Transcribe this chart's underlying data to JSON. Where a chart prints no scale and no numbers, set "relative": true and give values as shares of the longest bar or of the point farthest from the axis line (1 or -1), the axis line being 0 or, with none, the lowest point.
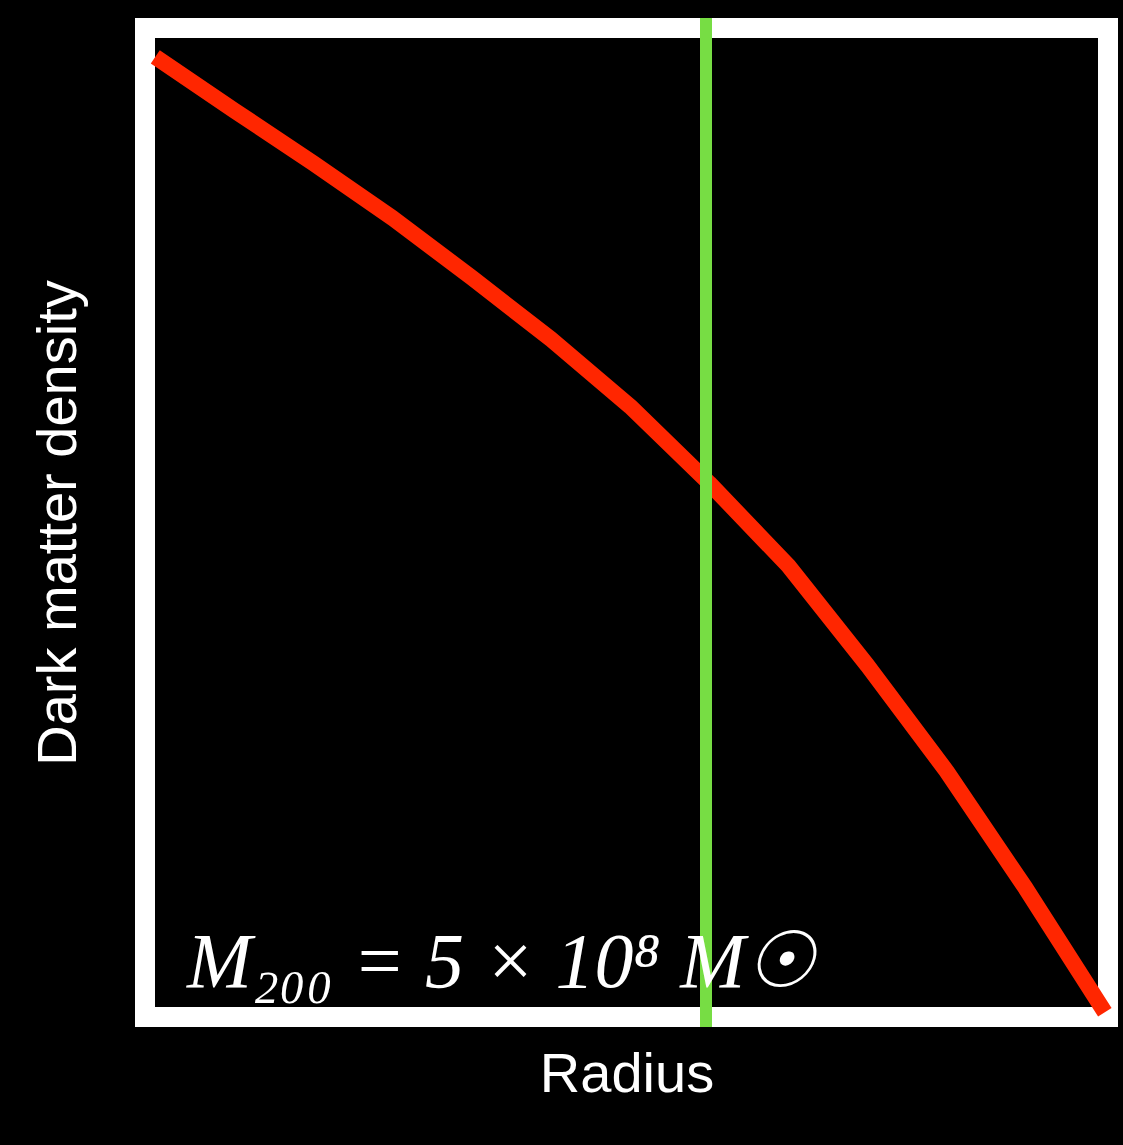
{
  "chart_data": {
    "type": "line",
    "relative": true,
    "xlabel": "Radius",
    "ylabel": "Dark matter density",
    "categories": [
      null,
      null,
      null,
      null,
      null,
      null,
      null,
      null,
      null,
      null,
      null,
      null,
      null
    ],
    "series": [
      {
        "color": "#ff2600",
        "values": [
          1.0,
          0.944,
          0.889,
          0.832,
          0.77,
          0.706,
          0.636,
          0.556,
          0.47,
          0.366,
          0.256,
          0.134,
          0.005
        ]
      }
    ],
    "annotations": [
      "M₂₀₀ = 5 × 10⁸ M☉"
    ],
    "grid": false,
    "marker": "none",
    "line_style": "solid"
  }
}
